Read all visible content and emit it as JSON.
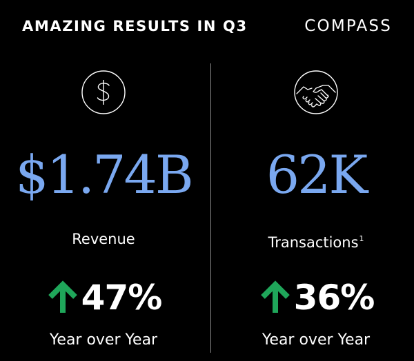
{
  "header": {
    "title": "AMAZING RESULTS IN Q3",
    "brand": "COMPASS"
  },
  "colors": {
    "background": "#000000",
    "text": "#ffffff",
    "accent_blue": "#7aa8f0",
    "up_green": "#1fa65a",
    "divider": "#8a8a8a"
  },
  "metrics": [
    {
      "icon": "dollar-circle-icon",
      "value": "$1.74B",
      "label": "Revenue",
      "footnote": "",
      "change": "47%",
      "change_direction": "up",
      "period": "Year over Year"
    },
    {
      "icon": "handshake-icon",
      "value": "62K",
      "label": "Transactions",
      "footnote": "1",
      "change": "36%",
      "change_direction": "up",
      "period": "Year over Year"
    }
  ]
}
